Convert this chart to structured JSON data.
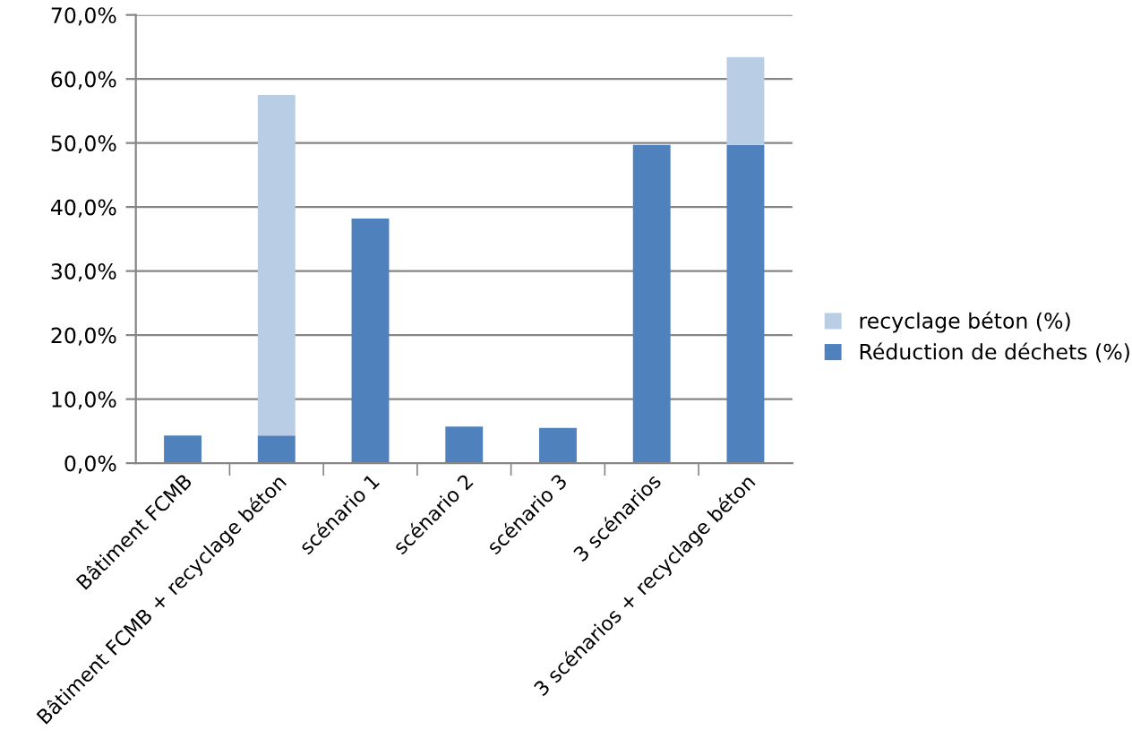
{
  "chart_data": {
    "type": "bar",
    "stacked": true,
    "categories": [
      "Bâtiment FCMB",
      "Bâtiment FCMB + recyclage béton",
      "scénario 1",
      "scénario 2",
      "scénario 3",
      "3 scénarios",
      "3 scénarios + recyclage béton"
    ],
    "series": [
      {
        "name": "Réduction de déchets (%)",
        "color": "#4f81bd",
        "values": [
          4.3,
          4.3,
          38.2,
          5.7,
          5.5,
          49.7,
          49.7
        ]
      },
      {
        "name": "recyclage béton (%)",
        "color": "#b9cde5",
        "values": [
          null,
          53.2,
          null,
          null,
          null,
          null,
          13.7
        ]
      }
    ],
    "ylim": [
      0,
      70
    ],
    "yticks": [
      {
        "value": 0,
        "label": "0,0%"
      },
      {
        "value": 10,
        "label": "10,0%"
      },
      {
        "value": 20,
        "label": "20,0%"
      },
      {
        "value": 30,
        "label": "30,0%"
      },
      {
        "value": 40,
        "label": "40,0%"
      },
      {
        "value": 50,
        "label": "50,0%"
      },
      {
        "value": 60,
        "label": "60,0%"
      },
      {
        "value": 70,
        "label": "70,0%"
      }
    ],
    "grid": "y",
    "legend": "right"
  }
}
